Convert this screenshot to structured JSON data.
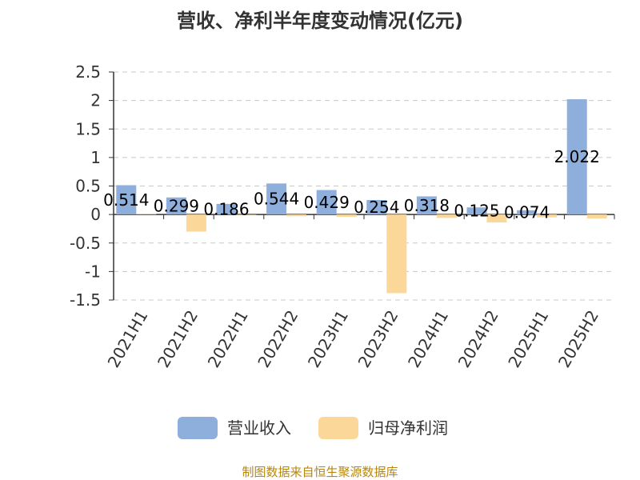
{
  "chart_data": {
    "type": "bar",
    "title": "营收、净利半年度变动情况(亿元)",
    "categories": [
      "2021H1",
      "2021H2",
      "2022H1",
      "2022H2",
      "2023H1",
      "2023H2",
      "2024H1",
      "2024H2",
      "2025H1",
      "2025H2"
    ],
    "series": [
      {
        "name": "营业收入",
        "color": "#8eaedc",
        "values": [
          0.514,
          0.299,
          0.186,
          0.544,
          0.429,
          0.254,
          0.318,
          0.125,
          0.074,
          2.022
        ],
        "labels": [
          "0.514",
          "0.299",
          "0.186",
          "0.544",
          "0.429",
          "0.254",
          "0.318",
          "0.125",
          "0.074",
          "2.022"
        ]
      },
      {
        "name": "归母净利润",
        "color": "#fcd79a",
        "values": [
          0.01,
          -0.3,
          0.0,
          -0.03,
          -0.04,
          -1.38,
          -0.06,
          -0.14,
          -0.05,
          -0.07
        ]
      }
    ],
    "ylim": [
      -1.5,
      2.5
    ],
    "yticks": [
      2.5,
      2,
      1.5,
      1,
      0.5,
      0,
      -0.5,
      -1,
      -1.5
    ],
    "ytick_labels": [
      "2.5",
      "2",
      "1.5",
      "1",
      "0.5",
      "0",
      "-0.5",
      "-1",
      "-1.5"
    ],
    "grid": true,
    "legend_position": "bottom"
  },
  "source_text": "制图数据来自恒生聚源数据库"
}
